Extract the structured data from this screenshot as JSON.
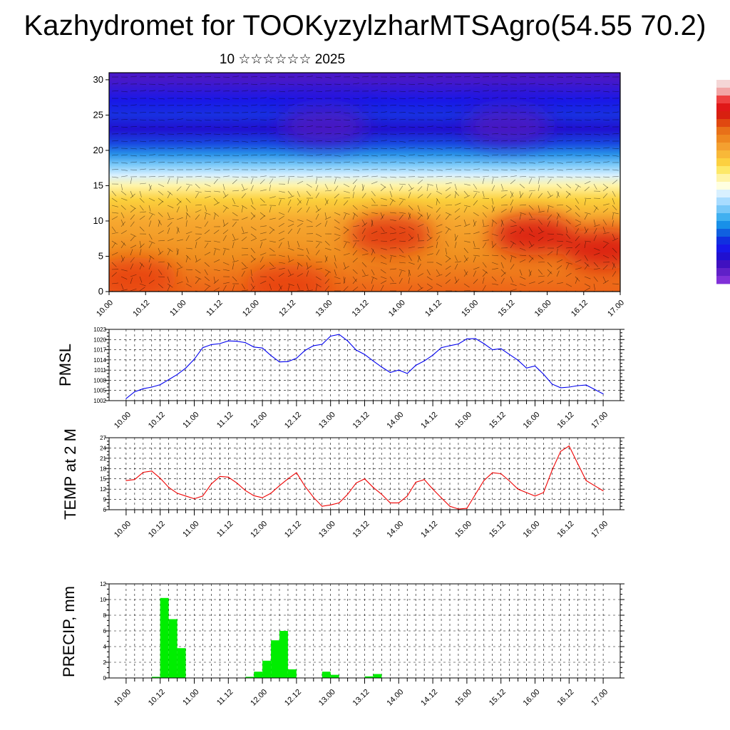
{
  "title": "Kazhydromet for TOOKyzylzharMTSAgro(54.55 70.2)",
  "subtitle": "10 ☆☆☆☆☆☆ 2025",
  "colorbar": {
    "colors": [
      "#f5d6d6",
      "#f2a6a6",
      "#ee4040",
      "#e01818",
      "#d82010",
      "#e04810",
      "#e87018",
      "#ee8820",
      "#f4a030",
      "#f8b838",
      "#fcd040",
      "#fde868",
      "#fff4a8",
      "#ffffe0",
      "#d8f0ff",
      "#a8dcff",
      "#78c8f8",
      "#40b0f0",
      "#1890e8",
      "#1060e0",
      "#1030e0",
      "#1818e8",
      "#2010d0",
      "#4010c0",
      "#6020c8",
      "#8030d8"
    ]
  },
  "chart_data": [
    {
      "type": "heatmap",
      "x_tick_labels": [
        "10.00",
        "10.12",
        "11.00",
        "11.12",
        "12.00",
        "12.12",
        "13.00",
        "13.12",
        "14.00",
        "14.12",
        "15.00",
        "15.12",
        "16.00",
        "16.12",
        "17.00"
      ],
      "ylim": [
        0,
        31
      ],
      "y_ticks": [
        0,
        5,
        10,
        15,
        20,
        25,
        30
      ],
      "bands": [
        {
          "z": 0,
          "color": "#ee6418"
        },
        {
          "z": 5,
          "color": "#f09020"
        },
        {
          "z": 10,
          "color": "#f6a830"
        },
        {
          "z": 13,
          "color": "#fbd03c"
        },
        {
          "z": 15,
          "color": "#fff4a8"
        },
        {
          "z": 16.5,
          "color": "#d8f0ff"
        },
        {
          "z": 18,
          "color": "#78c8f8"
        },
        {
          "z": 19.5,
          "color": "#2890e8"
        },
        {
          "z": 21,
          "color": "#1848e0"
        },
        {
          "z": 23,
          "color": "#2010d0"
        },
        {
          "z": 25,
          "color": "#1830e0"
        },
        {
          "z": 27,
          "color": "#1818e8"
        },
        {
          "z": 30,
          "color": "#4818c8"
        }
      ],
      "hotspots": [
        {
          "x": 0.55,
          "z": 8,
          "color": "#e03010"
        },
        {
          "x": 0.83,
          "z": 8,
          "color": "#d81010"
        },
        {
          "x": 0.97,
          "z": 6,
          "color": "#d81010"
        },
        {
          "x": 0.05,
          "z": 2,
          "color": "#e84010"
        },
        {
          "x": 0.35,
          "z": 1,
          "color": "#e84010"
        },
        {
          "x": 0.42,
          "z": 23.5,
          "color": "#5018c0"
        },
        {
          "x": 0.78,
          "z": 23.5,
          "color": "#5018c0"
        }
      ]
    },
    {
      "type": "line",
      "ylabel": "PMSL",
      "ylim": [
        1002,
        1023
      ],
      "y_ticks": [
        1002,
        1005,
        1008,
        1011,
        1014,
        1017,
        1020,
        1023
      ],
      "x_tick_labels": [
        "10.00",
        "10.12",
        "11.00",
        "11.12",
        "12.00",
        "12.12",
        "13.00",
        "13.12",
        "14.00",
        "14.12",
        "15.00",
        "15.12",
        "16.00",
        "16.12",
        "17.00"
      ],
      "x_range": [
        -0.25,
        7.25
      ],
      "x": [
        0,
        0.125,
        0.25,
        0.375,
        0.5,
        0.625,
        0.75,
        0.875,
        1,
        1.125,
        1.25,
        1.375,
        1.5,
        1.625,
        1.75,
        1.875,
        2,
        2.125,
        2.25,
        2.375,
        2.5,
        2.625,
        2.75,
        2.875,
        3,
        3.125,
        3.25,
        3.375,
        3.5,
        3.625,
        3.75,
        3.875,
        4,
        4.125,
        4.25,
        4.375,
        4.5,
        4.625,
        4.75,
        4.875,
        5,
        5.125,
        5.25,
        5.375,
        5.5,
        5.625,
        5.75,
        5.875,
        6,
        6.125,
        6.25,
        6.375,
        6.5,
        6.625,
        6.75,
        6.875,
        7
      ],
      "color": "#0000ee",
      "values": [
        1002.6,
        1004.6,
        1005.5,
        1006.0,
        1006.7,
        1008.2,
        1009.7,
        1011.6,
        1014.2,
        1017.6,
        1018.5,
        1018.8,
        1019.6,
        1019.5,
        1019.1,
        1017.8,
        1017.5,
        1015.3,
        1013.4,
        1013.5,
        1014.5,
        1016.8,
        1018.2,
        1018.6,
        1021.0,
        1021.5,
        1019.6,
        1016.9,
        1015.6,
        1013.7,
        1011.9,
        1010.3,
        1011.0,
        1010.0,
        1012.4,
        1013.7,
        1015.4,
        1017.6,
        1018.2,
        1018.7,
        1020.2,
        1020.3,
        1018.8,
        1017.0,
        1017.3,
        1015.6,
        1013.9,
        1011.6,
        1012.2,
        1009.8,
        1006.9,
        1005.8,
        1006.0,
        1006.4,
        1006.6,
        1005.3,
        1004.0
      ]
    },
    {
      "type": "line",
      "ylabel": "TEMP at 2 M",
      "ylim": [
        6,
        27
      ],
      "y_ticks": [
        6,
        9,
        12,
        15,
        18,
        21,
        24,
        27
      ],
      "x_tick_labels": [
        "10.00",
        "10.12",
        "11.00",
        "11.12",
        "12.00",
        "12.12",
        "13.00",
        "13.12",
        "14.00",
        "14.12",
        "15.00",
        "15.12",
        "16.00",
        "16.12",
        "17.00"
      ],
      "x_range": [
        -0.25,
        7.25
      ],
      "x": [
        0,
        0.125,
        0.25,
        0.375,
        0.5,
        0.625,
        0.75,
        0.875,
        1,
        1.125,
        1.25,
        1.375,
        1.5,
        1.625,
        1.75,
        1.875,
        2,
        2.125,
        2.25,
        2.375,
        2.5,
        2.625,
        2.75,
        2.875,
        3,
        3.125,
        3.25,
        3.375,
        3.5,
        3.625,
        3.75,
        3.875,
        4,
        4.125,
        4.25,
        4.375,
        4.5,
        4.625,
        4.75,
        4.875,
        5,
        5.125,
        5.25,
        5.375,
        5.5,
        5.625,
        5.75,
        5.875,
        6,
        6.125,
        6.25,
        6.375,
        6.5,
        6.625,
        6.75,
        6.875,
        7
      ],
      "color": "#ee0000",
      "values": [
        14.5,
        14.8,
        16.9,
        17.3,
        15.2,
        12.5,
        10.8,
        10.0,
        9.2,
        10.0,
        13.5,
        15.7,
        15.5,
        13.8,
        11.6,
        10.1,
        9.5,
        10.8,
        13.0,
        15.0,
        16.8,
        12.8,
        9.6,
        7.0,
        7.4,
        8.0,
        10.5,
        13.8,
        15.0,
        12.5,
        10.5,
        8.0,
        8.0,
        10.0,
        14.0,
        14.8,
        12.0,
        9.5,
        7.0,
        6.2,
        6.4,
        10.5,
        14.5,
        16.8,
        16.5,
        14.4,
        12.0,
        11.0,
        10.0,
        11.0,
        17.5,
        23.0,
        24.6,
        19.5,
        14.5,
        13.0,
        11.5
      ]
    },
    {
      "type": "bar",
      "ylabel": "PRECIP, mm",
      "ylim": [
        0,
        12
      ],
      "y_ticks": [
        0,
        2,
        4,
        6,
        8,
        10,
        12
      ],
      "x_tick_labels": [
        "10.00",
        "10.12",
        "11.00",
        "11.12",
        "12.00",
        "12.12",
        "13.00",
        "13.12",
        "14.00",
        "14.12",
        "15.00",
        "15.12",
        "16.00",
        "16.12",
        "17.00"
      ],
      "x_range": [
        -0.25,
        7.25
      ],
      "color": "#00ee00",
      "x": [
        0.375,
        0.5,
        0.625,
        0.75,
        0.875,
        1.0,
        1.875,
        2.0,
        2.125,
        2.25,
        2.375,
        2.5,
        3.0,
        3.125,
        3.625,
        3.75,
        5.875,
        6.0
      ],
      "values": [
        0.05,
        0.15,
        10.2,
        7.5,
        3.8,
        0.05,
        0.15,
        0.8,
        2.2,
        4.8,
        6.0,
        1.1,
        0.8,
        0.4,
        0.2,
        0.5,
        0.05,
        0.05
      ]
    }
  ]
}
